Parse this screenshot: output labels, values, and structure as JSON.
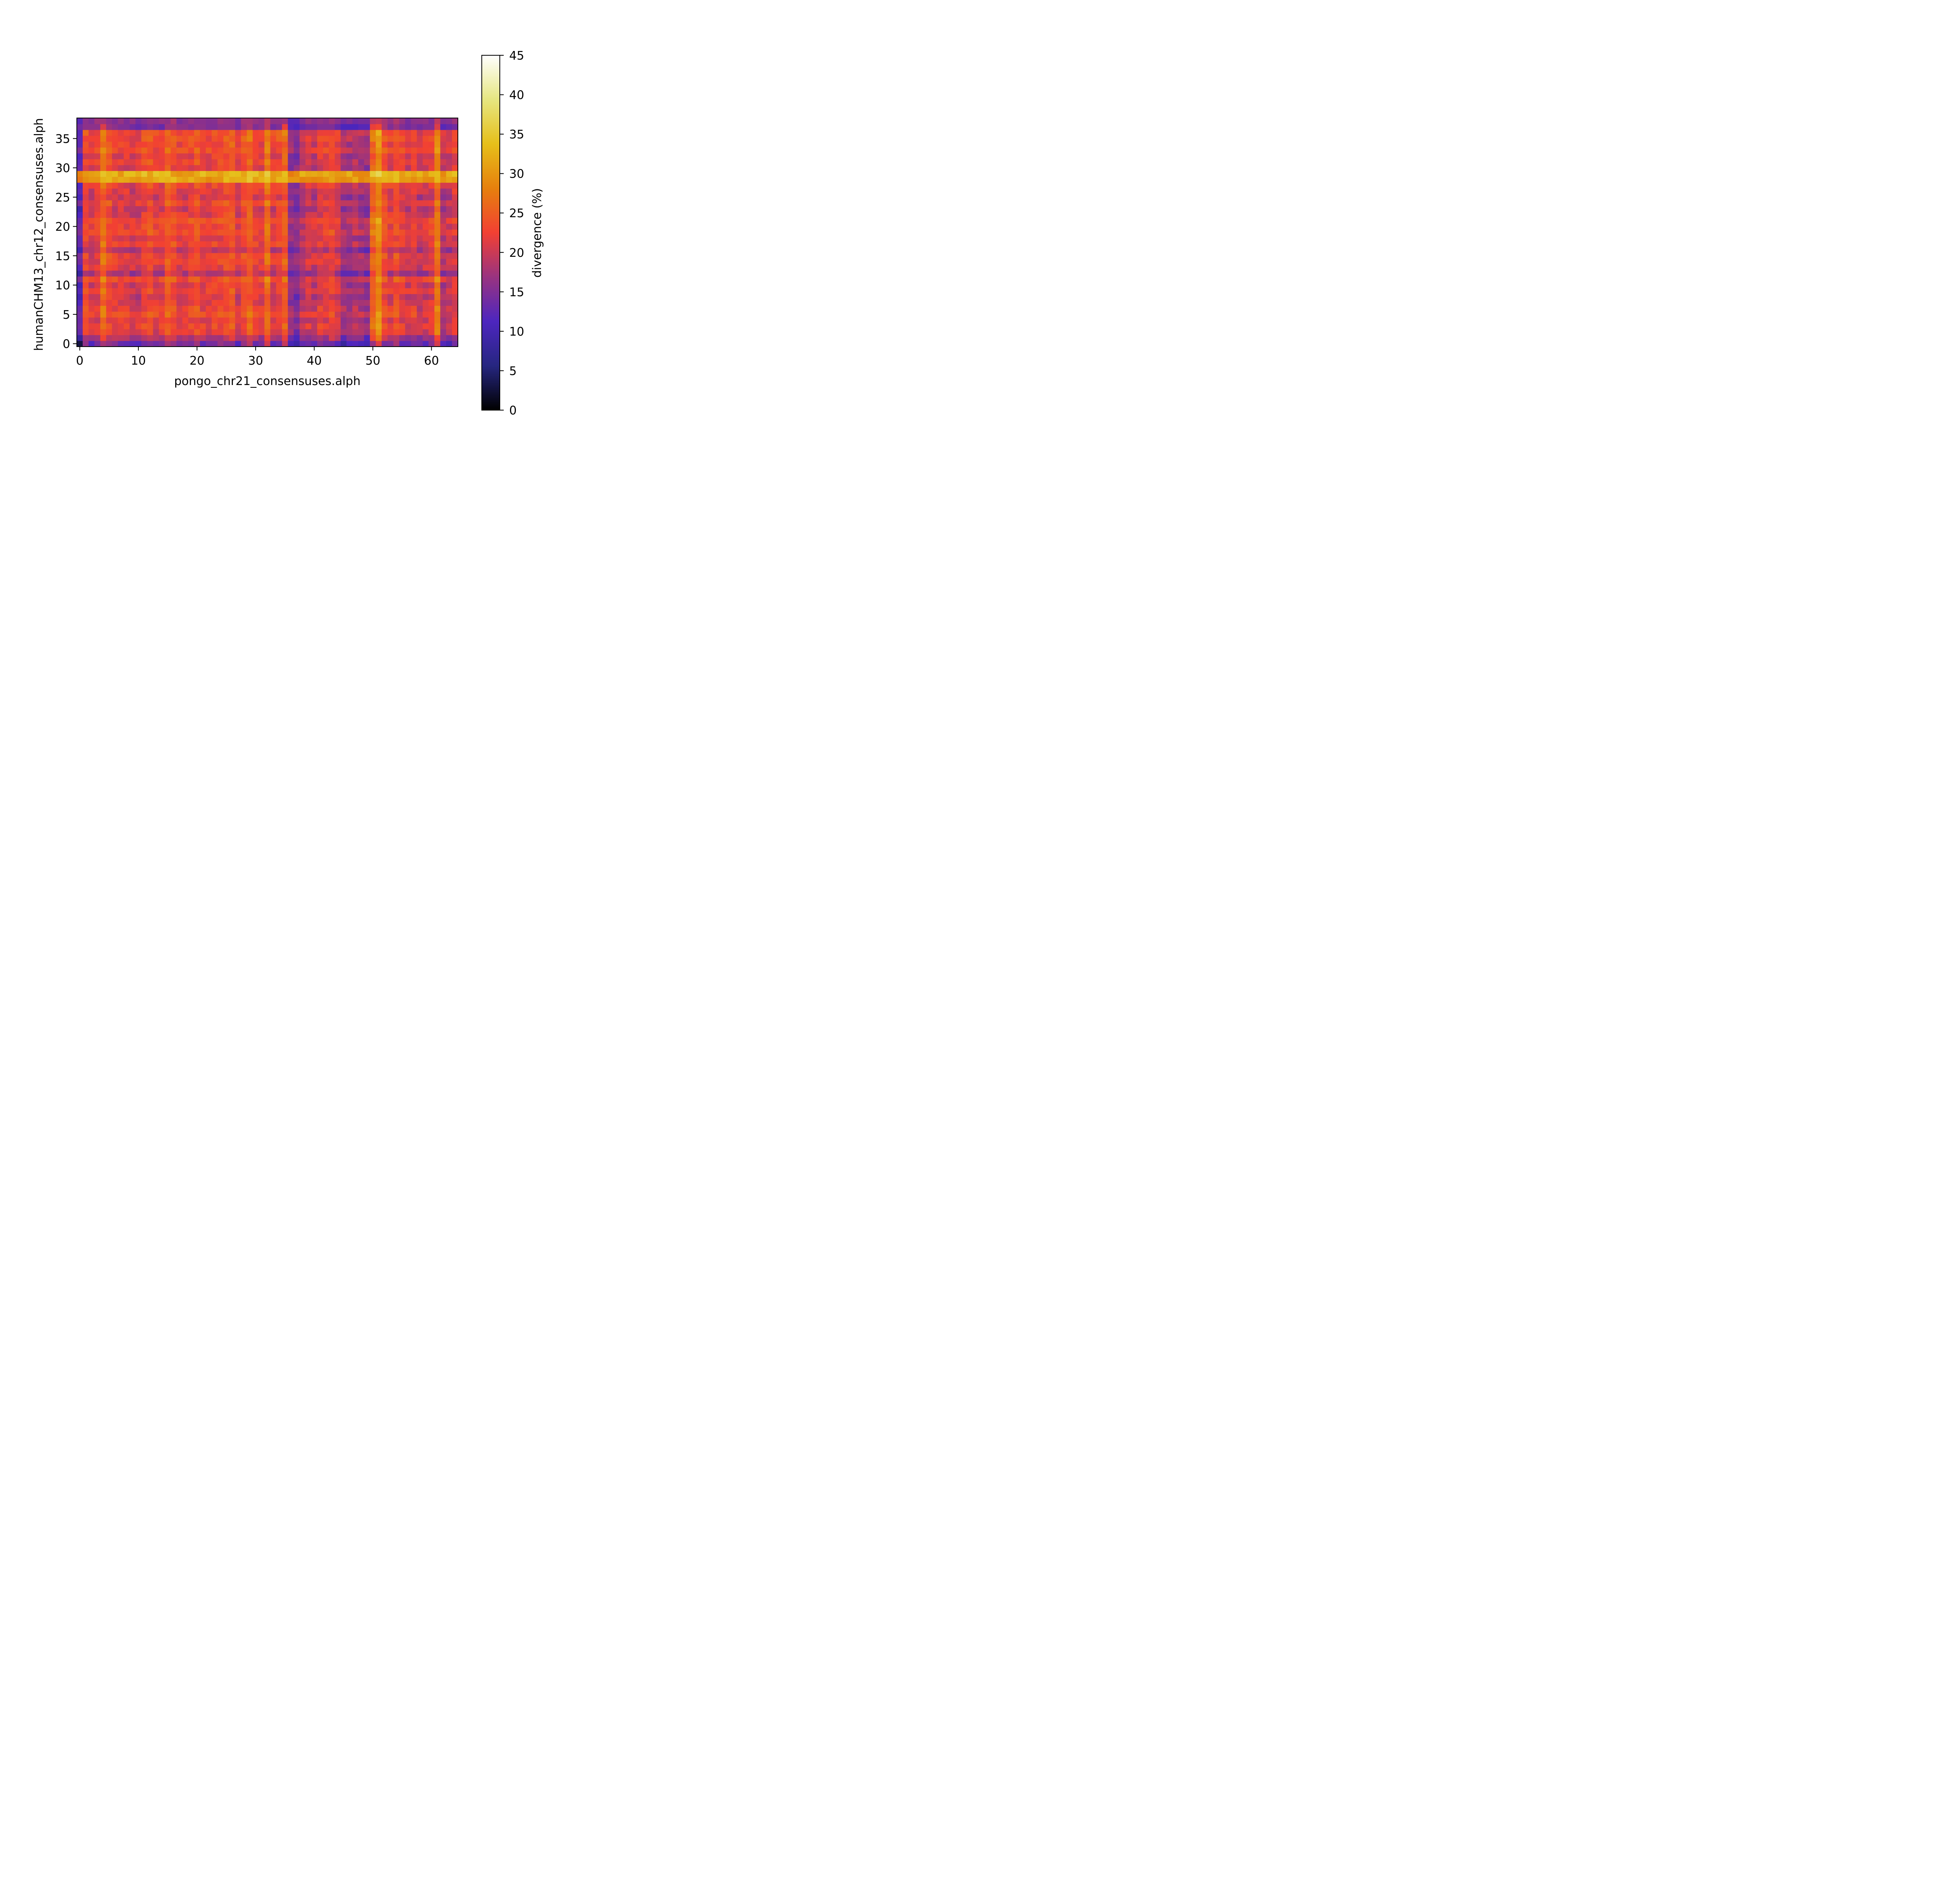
{
  "chart_data": {
    "type": "heatmap",
    "title": "",
    "xlabel": "pongo_chr21_consensuses.alph",
    "ylabel": "humanCHM13_chr12_consensuses.alph",
    "n_cols": 65,
    "n_rows": 39,
    "xlim": [
      -0.5,
      64.5
    ],
    "ylim": [
      -0.5,
      38.5
    ],
    "xticks": [
      0,
      10,
      20,
      30,
      40,
      50,
      60
    ],
    "yticks": [
      0,
      5,
      10,
      15,
      20,
      25,
      30,
      35
    ],
    "grid": false,
    "colormap": "CMRmap",
    "colorbar": {
      "label": "divergence (%)",
      "vmin": 0,
      "vmax": 45,
      "ticks": [
        0,
        5,
        10,
        15,
        20,
        25,
        30,
        35,
        40,
        45
      ]
    },
    "row_profile": [
      13,
      17,
      20,
      21,
      20,
      22,
      21,
      20,
      19,
      21,
      20,
      22,
      17,
      20,
      21,
      21,
      18,
      21,
      20,
      22,
      21,
      22,
      20,
      19,
      21,
      19,
      20,
      21,
      29,
      31,
      20,
      21,
      20,
      22,
      21,
      22,
      22,
      15,
      16
    ],
    "col_profile": [
      13,
      23,
      21,
      22,
      27,
      24,
      22,
      22,
      22,
      21,
      21,
      23,
      24,
      22,
      22,
      25,
      24,
      22,
      22,
      23,
      24,
      22,
      22,
      23,
      23,
      24,
      25,
      21,
      24,
      26,
      23,
      22,
      27,
      22,
      23,
      26,
      17,
      16,
      19,
      21,
      20,
      22,
      22,
      23,
      21,
      18,
      18,
      19,
      18,
      17,
      26,
      30,
      24,
      22,
      24,
      22,
      21,
      22,
      20,
      21,
      22,
      28,
      19,
      20,
      22
    ],
    "col_top": [
      14,
      16,
      16,
      16,
      21,
      17,
      16,
      15,
      15,
      14,
      13,
      14,
      15,
      14,
      13,
      17,
      17,
      16,
      16,
      15,
      16,
      16,
      15,
      15,
      16,
      16,
      16,
      14,
      17,
      18,
      15,
      16,
      19,
      14,
      15,
      22,
      12,
      11,
      13,
      14,
      14,
      15,
      15,
      15,
      13,
      11,
      11,
      11,
      12,
      12,
      22,
      23,
      18,
      15,
      17,
      15,
      14,
      15,
      14,
      15,
      15,
      21,
      12,
      13,
      14
    ],
    "row_special": {
      "28": 31,
      "29": 32,
      "37": 13,
      "38": 15
    }
  }
}
